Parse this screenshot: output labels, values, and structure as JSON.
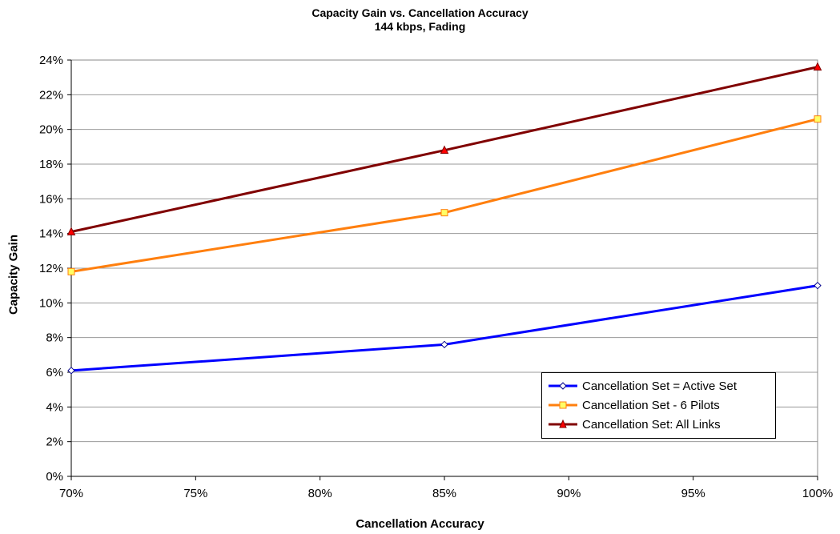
{
  "chart_data": {
    "type": "line",
    "title": "Capacity Gain vs. Cancellation Accuracy",
    "subtitle": "144 kbps, Fading",
    "xlabel": "Cancellation Accuracy",
    "ylabel": "Capacity Gain",
    "x": [
      0.7,
      0.85,
      1.0
    ],
    "xlim": [
      0.7,
      1.0
    ],
    "ylim": [
      0,
      0.24
    ],
    "x_ticks": [
      "70%",
      "75%",
      "80%",
      "85%",
      "90%",
      "95%",
      "100%"
    ],
    "y_ticks": [
      "0%",
      "2%",
      "4%",
      "6%",
      "8%",
      "10%",
      "12%",
      "14%",
      "16%",
      "18%",
      "20%",
      "22%",
      "24%"
    ],
    "grid": "horizontal",
    "legend_position": "bottom-right",
    "series": [
      {
        "name": "Cancellation Set = Active Set",
        "values": [
          0.061,
          0.076,
          0.11
        ],
        "color": "#0000ff",
        "marker": "diamond",
        "marker_fill": "#ffffff",
        "marker_stroke": "#00008b"
      },
      {
        "name": "Cancellation Set - 6 Pilots",
        "values": [
          0.118,
          0.152,
          0.206
        ],
        "color": "#ff7f0e",
        "marker": "square",
        "marker_fill": "#ffff66",
        "marker_stroke": "#ff7f0e"
      },
      {
        "name": "Cancellation Set:  All Links",
        "values": [
          0.141,
          0.188,
          0.236
        ],
        "color": "#800000",
        "marker": "triangle",
        "marker_fill": "#ff0000",
        "marker_stroke": "#800000"
      }
    ]
  }
}
